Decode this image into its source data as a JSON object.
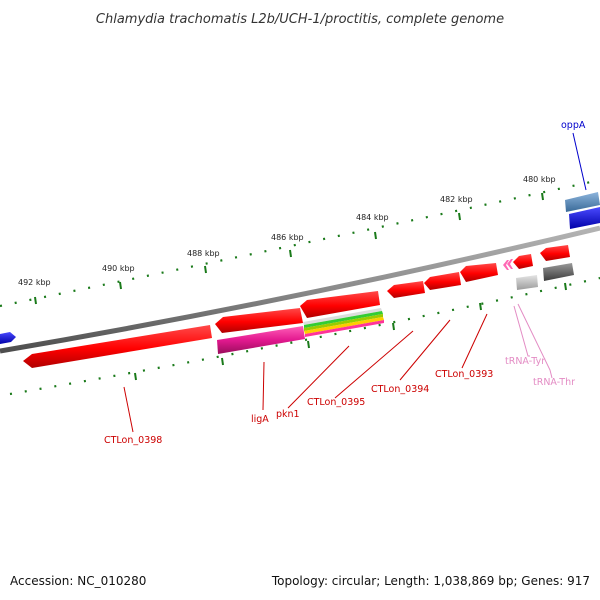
{
  "title": "Chlamydia trachomatis L2b/UCH-1/proctitis, complete genome",
  "ticks": [
    {
      "label": "492 kbp"
    },
    {
      "label": "490 kbp"
    },
    {
      "label": "488 kbp"
    },
    {
      "label": "486 kbp"
    },
    {
      "label": "484 kbp"
    },
    {
      "label": "482 kbp"
    },
    {
      "label": "480 kbp"
    }
  ],
  "genes": [
    {
      "label": "oppA",
      "color": "#0000cc"
    },
    {
      "label": "CTLon_0393",
      "color": "#cc0000"
    },
    {
      "label": "CTLon_0394",
      "color": "#cc0000"
    },
    {
      "label": "CTLon_0395",
      "color": "#cc0000"
    },
    {
      "label": "pkn1",
      "color": "#cc0000"
    },
    {
      "label": "ligA",
      "color": "#cc0000"
    },
    {
      "label": "CTLon_0398",
      "color": "#cc0000"
    },
    {
      "label": "tRNA-Tyr",
      "color": "#e38cc4"
    },
    {
      "label": "tRNA-Thr",
      "color": "#e38cc4"
    }
  ],
  "colors": {
    "cds": "#ff0000",
    "cds_dark": "#c40000",
    "magenta": "#e0198c",
    "blue": "#0000ee",
    "steelblue": "#4682b4",
    "gray_backbone": "#808080",
    "tick_green": "#1a7a1a",
    "trna": "#ff69b4"
  },
  "footer": {
    "accession": "Accession: NC_010280",
    "topology": "Topology: circular; Length: 1,038,869 bp; Genes: 917"
  }
}
